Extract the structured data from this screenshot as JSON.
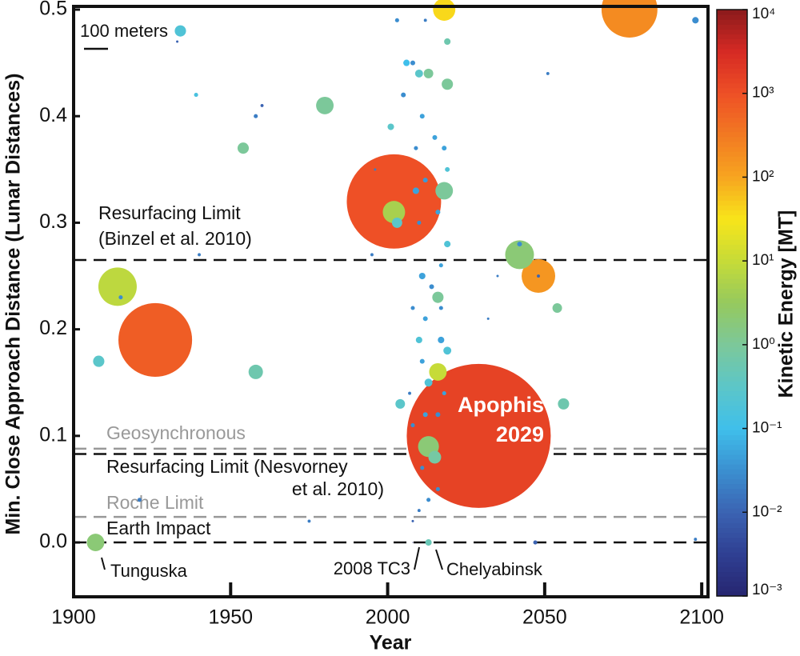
{
  "chart_data": {
    "type": "scatter",
    "xlabel": "Year",
    "ylabel": "Min. Close Approach Distance (Lunar Distances)",
    "xlim": [
      1900,
      2102
    ],
    "xticks": [
      1900,
      1950,
      2000,
      2050,
      2100
    ],
    "ylim": [
      -0.051,
      0.503
    ],
    "yticks": [
      {
        "value": 0,
        "label": "0.0"
      },
      0.1,
      0.2,
      0.3,
      0.4,
      0.5
    ],
    "series": [
      {
        "x": [
          1907,
          1914,
          1926,
          1908,
          1934,
          1933,
          1939,
          1954,
          1958,
          1960,
          1958,
          1980,
          2002,
          2002,
          2003,
          2018,
          2018,
          2042,
          2042,
          2048,
          2048,
          2077,
          2054,
          2056,
          2029,
          2016,
          2013,
          2015,
          2004,
          2013,
          2016,
          2013,
          2019,
          2001,
          2098,
          2013,
          2047,
          2098,
          1921,
          1915,
          1940,
          2006,
          2008,
          2010,
          2011,
          2005,
          2009,
          2015,
          2018,
          2019,
          2012,
          2009,
          2010,
          2016,
          2019,
          2017,
          2011,
          2014,
          2008,
          2012,
          2010,
          2017,
          2019,
          2011,
          2008,
          2012,
          2016,
          2018,
          2011,
          2016,
          2010,
          2008,
          2017,
          2003,
          2012,
          2019,
          2013,
          2032,
          2035,
          2051,
          1975,
          1996,
          1995,
          2007,
          2008
        ],
        "values": [
          0.0,
          0.24,
          0.19,
          0.17,
          0.48,
          0.47,
          0.42,
          0.37,
          0.16,
          0.41,
          0.4,
          0.41,
          0.32,
          0.31,
          0.3,
          0.33,
          0.5,
          0.27,
          0.28,
          0.25,
          0.25,
          0.5,
          0.22,
          0.13,
          0.1,
          0.16,
          0.09,
          0.08,
          0.13,
          0.15,
          0.23,
          0.44,
          0.43,
          0.39,
          0.49,
          0.0,
          0.0,
          0.003,
          0.04,
          0.23,
          0.27,
          0.45,
          0.45,
          0.44,
          0.4,
          0.42,
          0.37,
          0.38,
          0.37,
          0.35,
          0.34,
          0.33,
          0.3,
          0.31,
          0.28,
          0.26,
          0.25,
          0.24,
          0.22,
          0.21,
          0.19,
          0.19,
          0.18,
          0.17,
          0.11,
          0.12,
          0.12,
          0.14,
          0.07,
          0.05,
          0.03,
          0.02,
          0.22,
          0.49,
          0.49,
          0.47,
          0.04,
          0.21,
          0.25,
          0.44,
          0.02,
          0.35,
          0.27,
          0.14,
          0.0
        ],
        "sizes": [
          73,
          160,
          307,
          47,
          47,
          10,
          17,
          47,
          60,
          13,
          17,
          73,
          393,
          93,
          43,
          73,
          93,
          120,
          20,
          140,
          13,
          233,
          40,
          47,
          600,
          73,
          87,
          53,
          40,
          33,
          47,
          40,
          47,
          27,
          27,
          27,
          17,
          13,
          17,
          17,
          13,
          27,
          20,
          33,
          20,
          20,
          17,
          20,
          20,
          20,
          20,
          27,
          17,
          20,
          27,
          17,
          27,
          20,
          17,
          20,
          27,
          27,
          33,
          20,
          17,
          20,
          20,
          17,
          17,
          17,
          13,
          10,
          17,
          17,
          13,
          27,
          17,
          10,
          10,
          13,
          13,
          10,
          13,
          13,
          3
        ],
        "energy": [
          2,
          8,
          700,
          0.3,
          0.2,
          0.01,
          0.15,
          1,
          0.6,
          0.01,
          0.02,
          1,
          1000,
          5,
          0.3,
          1,
          40,
          2,
          0.03,
          150,
          0.01,
          200,
          1,
          0.6,
          1500,
          10,
          2,
          0.8,
          0.3,
          0.2,
          1,
          1,
          1,
          0.3,
          0.03,
          0.5,
          0.01,
          0.02,
          0.02,
          0.03,
          0.02,
          0.1,
          0.03,
          0.3,
          0.05,
          0.03,
          0.03,
          0.05,
          0.05,
          0.2,
          0.04,
          0.05,
          0.03,
          0.05,
          0.2,
          0.05,
          0.05,
          0.03,
          0.03,
          0.05,
          0.2,
          0.05,
          0.2,
          0.05,
          0.03,
          0.05,
          0.03,
          0.05,
          0.03,
          0.03,
          0.02,
          0.01,
          0.03,
          0.03,
          0.02,
          0.6,
          0.03,
          0.02,
          0.02,
          0.02,
          0.02,
          0.02,
          0.02,
          0.02,
          0.001
        ]
      }
    ],
    "size_scale_bar": {
      "label": "100 meters",
      "value": 100
    },
    "colorbar": {
      "label": "Kinetic Energy [MT]",
      "lim": [
        0.001,
        10000
      ],
      "log": true,
      "ticks": [
        {
          "value": 0.001,
          "label": "10⁻³"
        },
        {
          "value": 0.01,
          "label": "10⁻²"
        },
        {
          "value": 0.1,
          "label": "10⁻¹"
        },
        {
          "value": 1,
          "label": "10⁰"
        },
        {
          "value": 10,
          "label": "10¹"
        },
        {
          "value": 100,
          "label": "10²"
        },
        {
          "value": 1000,
          "label": "10³"
        },
        {
          "value": 10000,
          "label": "10⁴"
        }
      ],
      "colormap": [
        "#272670",
        "#2f3f92",
        "#3b63b2",
        "#3b8fd0",
        "#3fbfeb",
        "#5cc6c8",
        "#7cc89a",
        "#95c95e",
        "#c6db38",
        "#f8e51a",
        "#f7a520",
        "#f27a22",
        "#ee5026",
        "#d62a24",
        "#8b1a1b"
      ]
    },
    "reference_lines": [
      {
        "label": [
          "Resurfacing Limit",
          "(Binzel et al. 2010)"
        ],
        "value": 0.265,
        "color": "#111111"
      },
      {
        "label": [
          "Geosynchronous"
        ],
        "value": 0.088,
        "color": "#999999"
      },
      {
        "label": [
          "Resurfacing Limit (Nesvorney",
          "et al. 2010)"
        ],
        "value": 0.083,
        "color": "#111111"
      },
      {
        "label": [
          "Roche Limit"
        ],
        "value": 0.024,
        "color": "#999999"
      },
      {
        "label": [
          "Earth Impact"
        ],
        "value": 0.0,
        "color": "#111111"
      }
    ],
    "annotations": [
      {
        "text": "Tunguska"
      },
      {
        "text": "2008 TC3"
      },
      {
        "text": "Chelyabinsk"
      },
      {
        "text": "Apophis"
      },
      {
        "text": "2029"
      }
    ]
  }
}
